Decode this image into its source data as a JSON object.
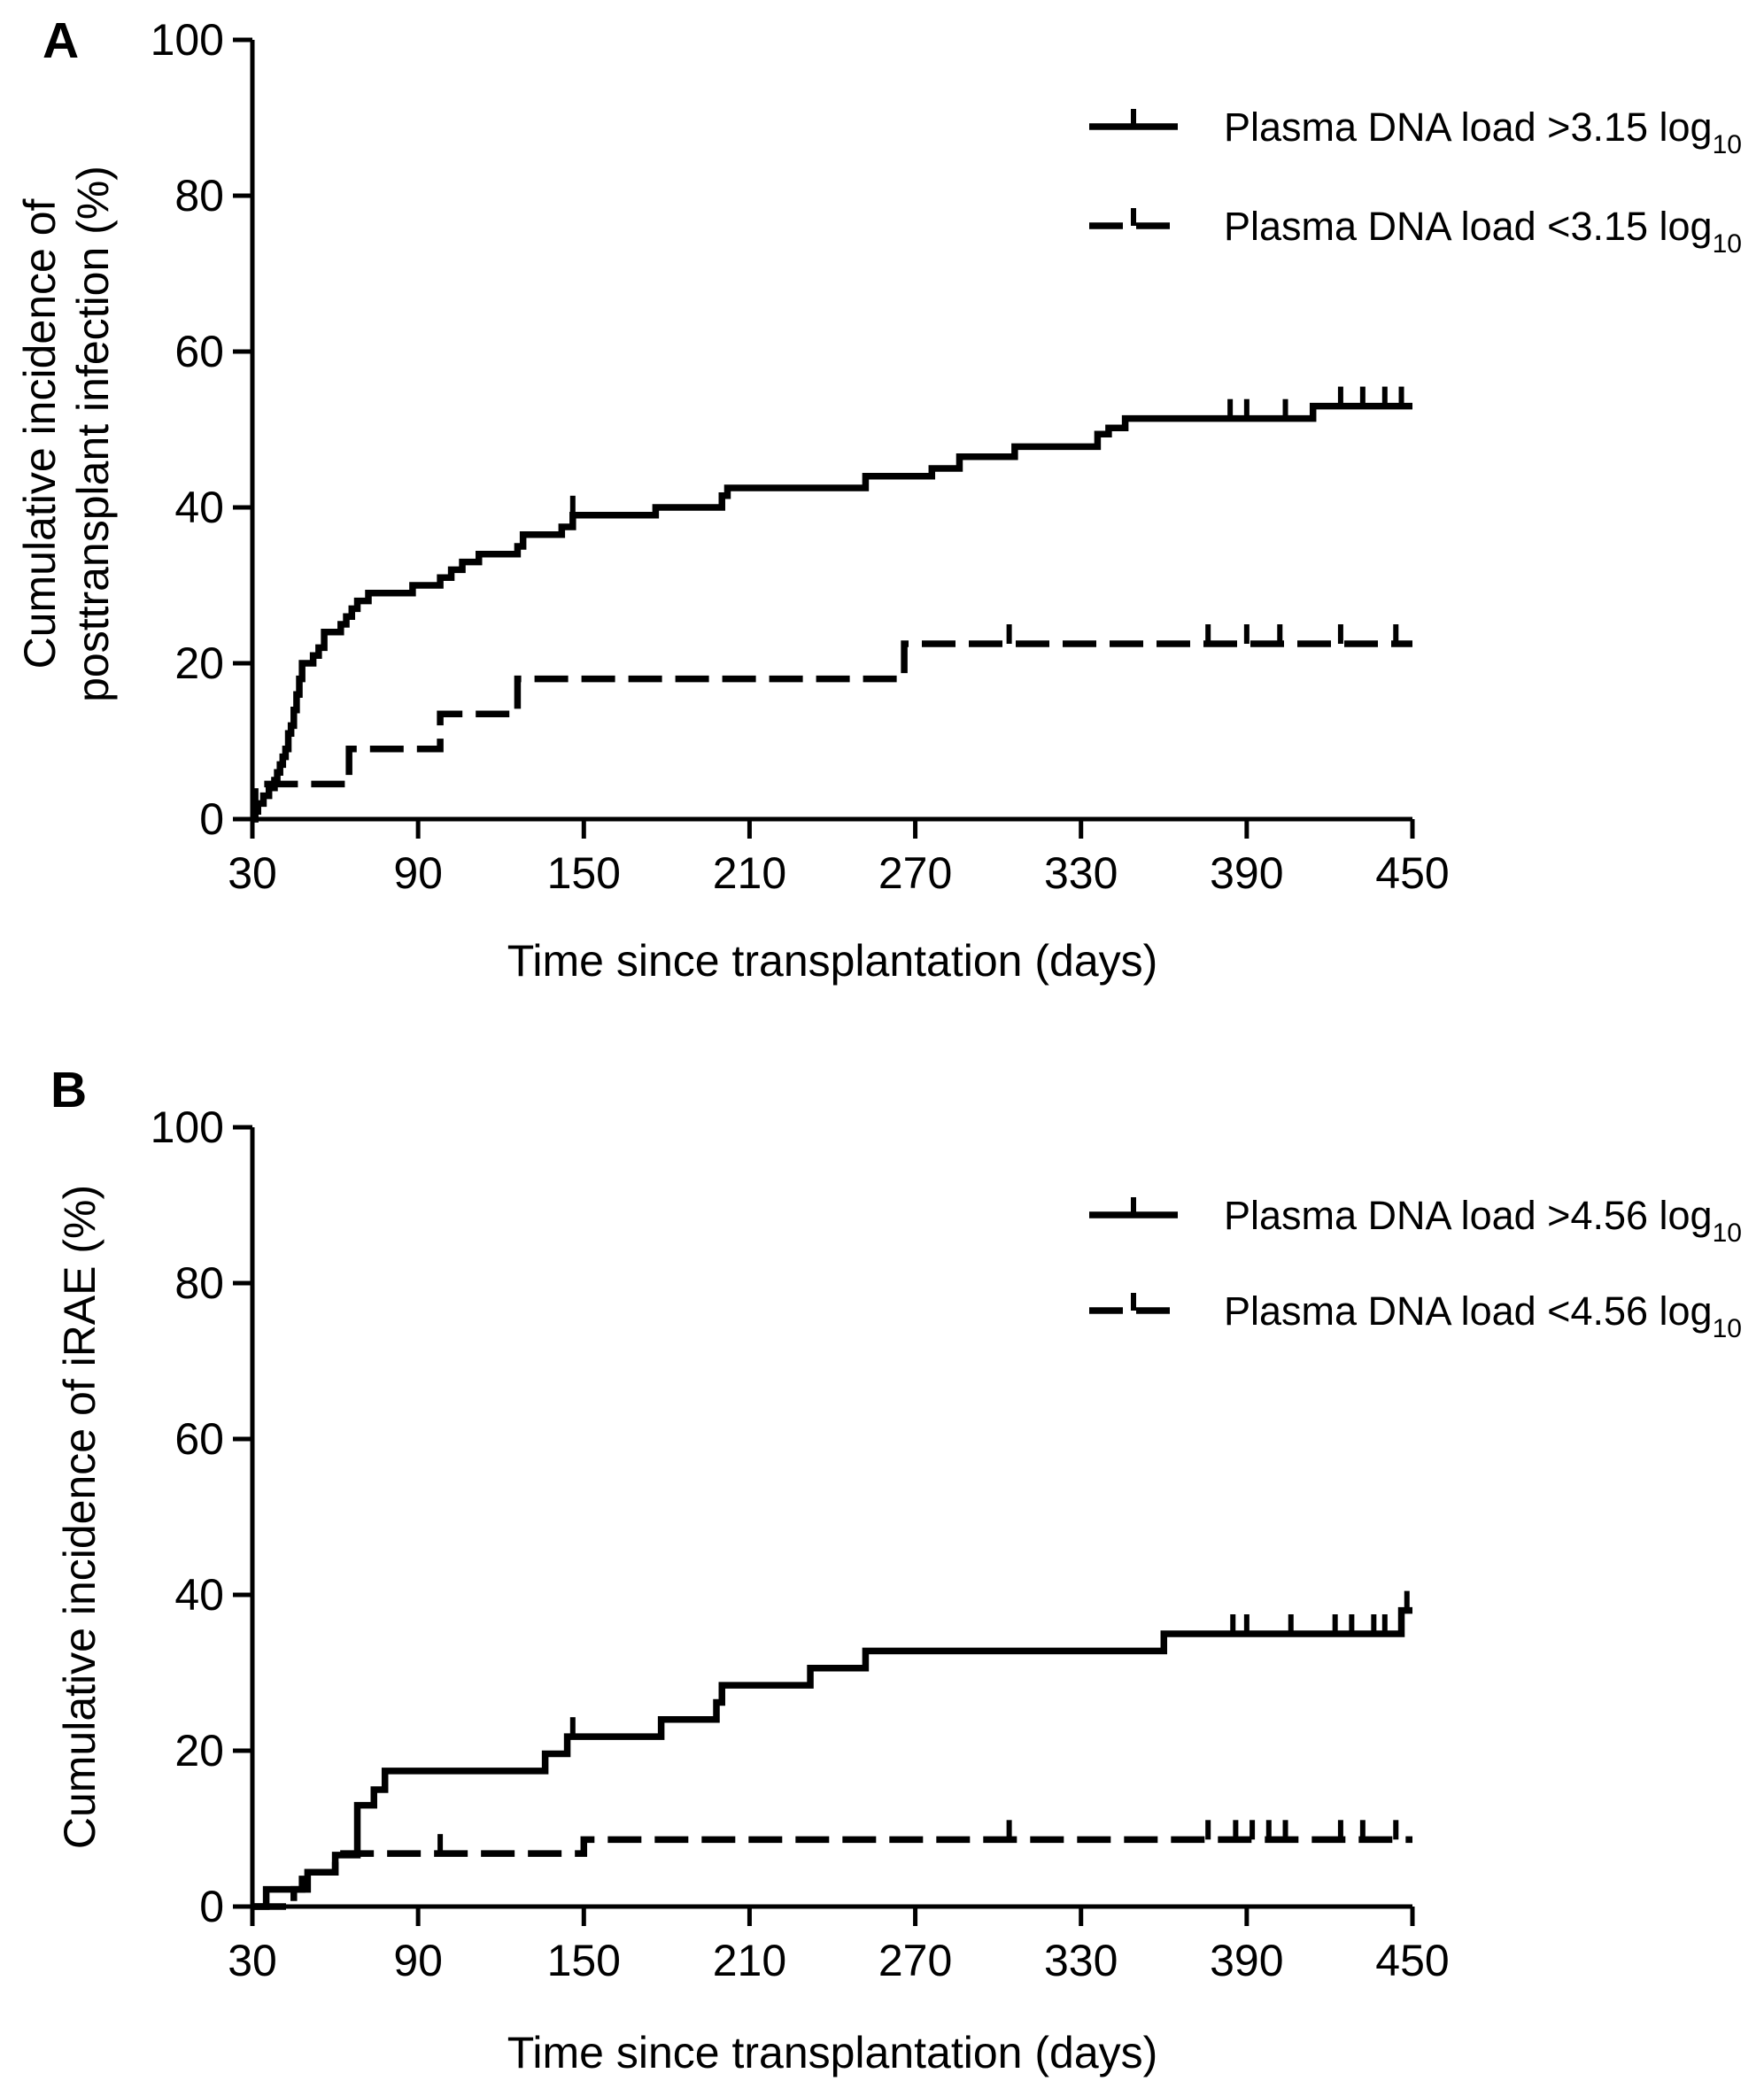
{
  "chart_data": [
    {
      "type": "line",
      "panel_label": "A",
      "xlabel": "Time since transplantation (days)",
      "ylabel": "Cumulative incidence of posttransplant infection (%)",
      "ylabel_lines": [
        "Cumulative incidence of",
        "posttransplant infection (%)"
      ],
      "xlim": [
        30,
        450
      ],
      "ylim": [
        0,
        100
      ],
      "x_ticks": [
        30,
        90,
        150,
        210,
        270,
        330,
        390,
        450
      ],
      "y_ticks": [
        0,
        20,
        40,
        60,
        80,
        100
      ],
      "grid": false,
      "legend_position": "top-right",
      "series": [
        {
          "name": "Plasma DNA load >3.15 log10",
          "label_main": "Plasma DNA load >3.15 log",
          "label_sub": "10",
          "style": "solid",
          "points": [
            [
              30,
              0
            ],
            [
              31,
              1
            ],
            [
              32,
              2
            ],
            [
              34,
              3
            ],
            [
              36,
              4
            ],
            [
              38,
              5
            ],
            [
              39,
              6
            ],
            [
              40,
              7
            ],
            [
              41,
              8
            ],
            [
              42,
              9
            ],
            [
              43,
              11
            ],
            [
              44,
              12
            ],
            [
              45,
              14
            ],
            [
              46,
              16
            ],
            [
              47,
              18
            ],
            [
              48,
              20
            ],
            [
              52,
              21
            ],
            [
              54,
              22
            ],
            [
              56,
              24
            ],
            [
              62,
              25
            ],
            [
              64,
              26
            ],
            [
              66,
              27
            ],
            [
              68,
              28
            ],
            [
              72,
              29
            ],
            [
              88,
              30
            ],
            [
              98,
              31
            ],
            [
              102,
              32
            ],
            [
              106,
              33
            ],
            [
              112,
              34
            ],
            [
              126,
              35
            ],
            [
              128,
              36.5
            ],
            [
              142,
              37.5
            ],
            [
              146,
              39
            ],
            [
              176,
              40
            ],
            [
              200,
              41.5
            ],
            [
              202,
              42.5
            ],
            [
              252,
              44
            ],
            [
              276,
              45
            ],
            [
              286,
              46.5
            ],
            [
              306,
              47.8
            ],
            [
              336,
              49.4
            ],
            [
              340,
              50.2
            ],
            [
              346,
              51.4
            ],
            [
              414,
              53
            ],
            [
              450,
              53
            ]
          ],
          "censor_x": [
            146,
            384,
            390,
            404,
            424,
            432,
            440,
            446
          ]
        },
        {
          "name": "Plasma DNA load <3.15 log10",
          "label_main": "Plasma DNA load <3.15 log",
          "label_sub": "10",
          "style": "dashed",
          "points": [
            [
              30,
              0
            ],
            [
              31,
              4.5
            ],
            [
              65,
              4.5
            ],
            [
              65,
              9
            ],
            [
              98,
              9
            ],
            [
              98,
              13.5
            ],
            [
              126,
              13.5
            ],
            [
              126,
              18
            ],
            [
              266,
              18
            ],
            [
              266,
              22.5
            ],
            [
              450,
              22.5
            ]
          ],
          "censor_x": [
            304,
            376,
            390,
            402,
            424,
            444
          ]
        }
      ]
    },
    {
      "type": "line",
      "panel_label": "B",
      "xlabel": "Time since transplantation (days)",
      "ylabel": "Cumulative incidence of iRAE (%)",
      "ylabel_lines": [
        "Cumulative incidence of iRAE (%)"
      ],
      "xlim": [
        30,
        450
      ],
      "ylim": [
        0,
        100
      ],
      "x_ticks": [
        30,
        90,
        150,
        210,
        270,
        330,
        390,
        450
      ],
      "y_ticks": [
        0,
        20,
        40,
        60,
        80,
        100
      ],
      "grid": false,
      "legend_position": "top-right",
      "series": [
        {
          "name": "Plasma DNA load >4.56 log10",
          "label_main": "Plasma DNA load >4.56 log",
          "label_sub": "10",
          "style": "solid",
          "points": [
            [
              30,
              0
            ],
            [
              35,
              2.2
            ],
            [
              50,
              4.4
            ],
            [
              60,
              6.6
            ],
            [
              68,
              13
            ],
            [
              74,
              15
            ],
            [
              78,
              17.4
            ],
            [
              136,
              19.6
            ],
            [
              144,
              21.8
            ],
            [
              178,
              24
            ],
            [
              198,
              26.2
            ],
            [
              200,
              28.4
            ],
            [
              232,
              30.6
            ],
            [
              252,
              32.8
            ],
            [
              360,
              35
            ],
            [
              446,
              35
            ],
            [
              446,
              38
            ],
            [
              450,
              38
            ]
          ],
          "censor_x": [
            146,
            385,
            390,
            406,
            422,
            428,
            436,
            440,
            448
          ]
        },
        {
          "name": "Plasma DNA load <4.56 log10",
          "label_main": "Plasma DNA load <4.56 log",
          "label_sub": "10",
          "style": "dashed",
          "points": [
            [
              30,
              0
            ],
            [
              45,
              2.2
            ],
            [
              48,
              4.4
            ],
            [
              60,
              6.8
            ],
            [
              150,
              6.8
            ],
            [
              150,
              8.6
            ],
            [
              450,
              8.6
            ]
          ],
          "censor_x": [
            98,
            304,
            376,
            386,
            392,
            398,
            404,
            424,
            432,
            444
          ]
        }
      ]
    }
  ]
}
